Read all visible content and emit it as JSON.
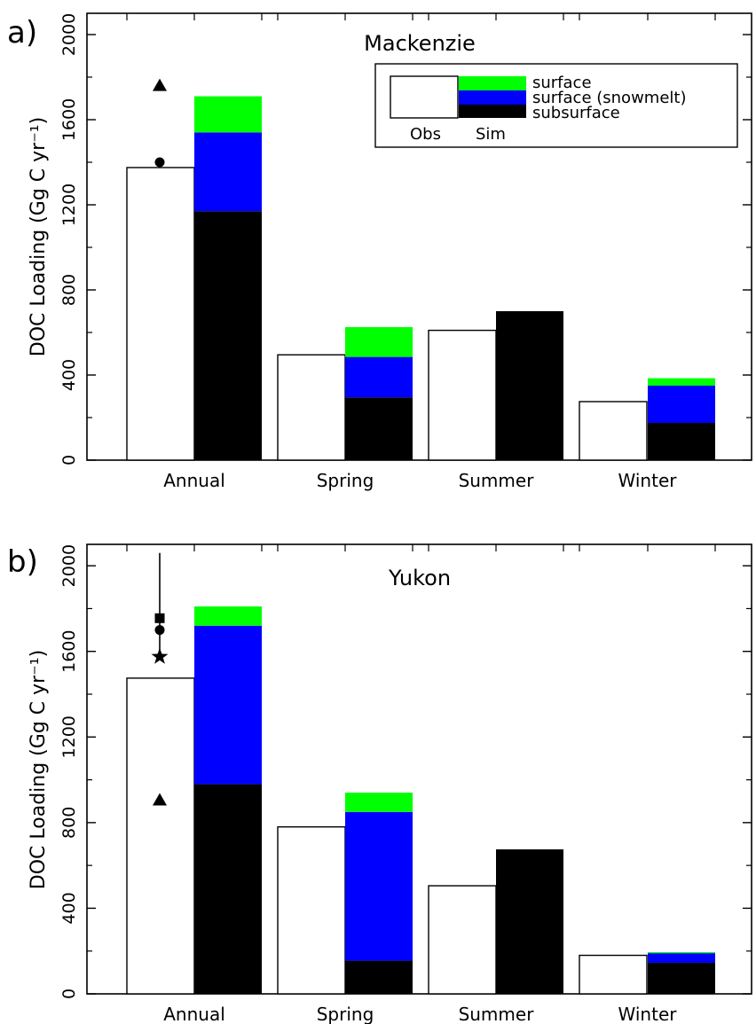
{
  "chart_data": [
    {
      "type": "bar",
      "panel_label": "a)",
      "title": "Mackenzie",
      "ylabel": "DOC Loading (Gg C yr⁻¹)",
      "ylim": [
        0,
        2100
      ],
      "yticks": [
        0,
        400,
        800,
        1200,
        1600,
        2000
      ],
      "categories": [
        "Annual",
        "Spring",
        "Summer",
        "Winter"
      ],
      "obs": [
        1375,
        495,
        610,
        275
      ],
      "sim": {
        "subsurface": [
          1170,
          295,
          700,
          175
        ],
        "surface_snowmelt": [
          370,
          190,
          0,
          175
        ],
        "surface": [
          170,
          140,
          0,
          35
        ]
      },
      "markers": [
        {
          "shape": "triangle",
          "category": "Annual",
          "value": 1760
        },
        {
          "shape": "circle",
          "category": "Annual",
          "value": 1400
        }
      ]
    },
    {
      "type": "bar",
      "panel_label": "b)",
      "title": "Yukon",
      "ylabel": "DOC Loading (Gg C yr⁻¹)",
      "ylim": [
        0,
        2100
      ],
      "yticks": [
        0,
        400,
        800,
        1200,
        1600,
        2000
      ],
      "categories": [
        "Annual",
        "Spring",
        "Summer",
        "Winter"
      ],
      "obs": [
        1475,
        780,
        505,
        180
      ],
      "sim": {
        "subsurface": [
          980,
          155,
          675,
          145
        ],
        "surface_snowmelt": [
          740,
          695,
          0,
          45
        ],
        "surface": [
          90,
          90,
          0,
          5
        ]
      },
      "markers": [
        {
          "shape": "square",
          "category": "Annual",
          "value": 1755
        },
        {
          "shape": "circle",
          "category": "Annual",
          "value": 1700
        },
        {
          "shape": "star",
          "category": "Annual",
          "value": 1575
        },
        {
          "shape": "triangle",
          "category": "Annual",
          "value": 905
        }
      ],
      "error_bar": {
        "category": "Annual",
        "low": 1575,
        "high": 2060
      }
    }
  ],
  "legend": {
    "entries": [
      {
        "key": "surface",
        "label": "surface",
        "color": "#00ff00"
      },
      {
        "key": "surface_snowmelt",
        "label": "surface (snowmelt)",
        "color": "#0000ff"
      },
      {
        "key": "subsurface",
        "label": "subsurface",
        "color": "#000000"
      }
    ],
    "obs_label": "Obs",
    "sim_label": "Sim"
  },
  "colors": {
    "surface": "#00ff00",
    "surface_snowmelt": "#0000ff",
    "subsurface": "#000000",
    "obs_fill": "#ffffff",
    "frame": "#000000"
  }
}
